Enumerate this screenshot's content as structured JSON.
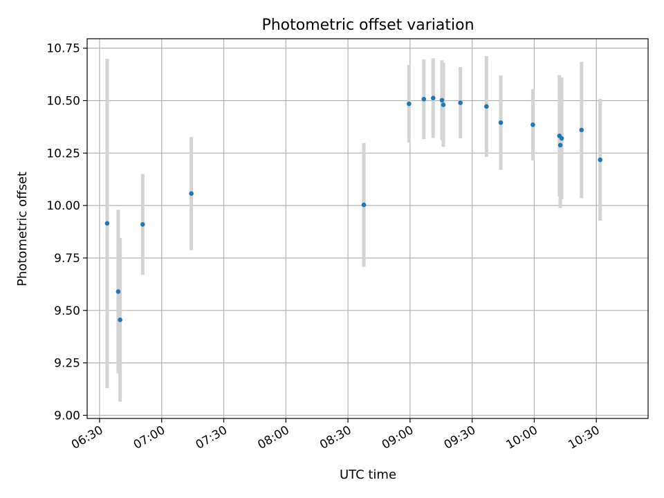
{
  "chart_data": {
    "type": "scatter",
    "title": "Photometric offset variation",
    "xlabel": "UTC time",
    "ylabel": "Photometric offset",
    "x_unit": "HH:MM UTC",
    "xlim": [
      "06:24",
      "10:55"
    ],
    "ylim": [
      8.985,
      10.795
    ],
    "x_ticks": [
      "06:30",
      "07:00",
      "07:30",
      "08:00",
      "08:30",
      "09:00",
      "09:30",
      "10:00",
      "10:30"
    ],
    "y_ticks": [
      "9.00",
      "9.25",
      "9.50",
      "9.75",
      "10.00",
      "10.25",
      "10.50",
      "10.75"
    ],
    "grid": true,
    "legend": "none",
    "colors": {
      "points": "#1f77b4",
      "errorbars": "#d3d3d3",
      "grid": "#b0b0b0"
    },
    "points": [
      {
        "x": "06:33:40",
        "y": 9.915,
        "err": 0.785
      },
      {
        "x": "06:39:00",
        "y": 9.59,
        "err": 0.39
      },
      {
        "x": "06:39:55",
        "y": 9.455,
        "err": 0.39
      },
      {
        "x": "06:50:50",
        "y": 9.91,
        "err": 0.24
      },
      {
        "x": "07:14:20",
        "y": 10.057,
        "err": 0.27
      },
      {
        "x": "08:37:40",
        "y": 10.003,
        "err": 0.295
      },
      {
        "x": "08:59:30",
        "y": 10.485,
        "err": 0.185
      },
      {
        "x": "09:06:40",
        "y": 10.507,
        "err": 0.19
      },
      {
        "x": "09:11:10",
        "y": 10.512,
        "err": 0.19
      },
      {
        "x": "09:15:25",
        "y": 10.502,
        "err": 0.19
      },
      {
        "x": "09:16:05",
        "y": 10.48,
        "err": 0.2
      },
      {
        "x": "09:24:20",
        "y": 10.49,
        "err": 0.17
      },
      {
        "x": "09:36:55",
        "y": 10.472,
        "err": 0.24
      },
      {
        "x": "09:43:50",
        "y": 10.395,
        "err": 0.225
      },
      {
        "x": "09:59:20",
        "y": 10.385,
        "err": 0.17
      },
      {
        "x": "10:12:10",
        "y": 10.332,
        "err": 0.29
      },
      {
        "x": "10:12:35",
        "y": 10.288,
        "err": 0.3
      },
      {
        "x": "10:13:15",
        "y": 10.32,
        "err": 0.29
      },
      {
        "x": "10:22:50",
        "y": 10.36,
        "err": 0.325
      },
      {
        "x": "10:31:50",
        "y": 10.218,
        "err": 0.29
      }
    ]
  }
}
